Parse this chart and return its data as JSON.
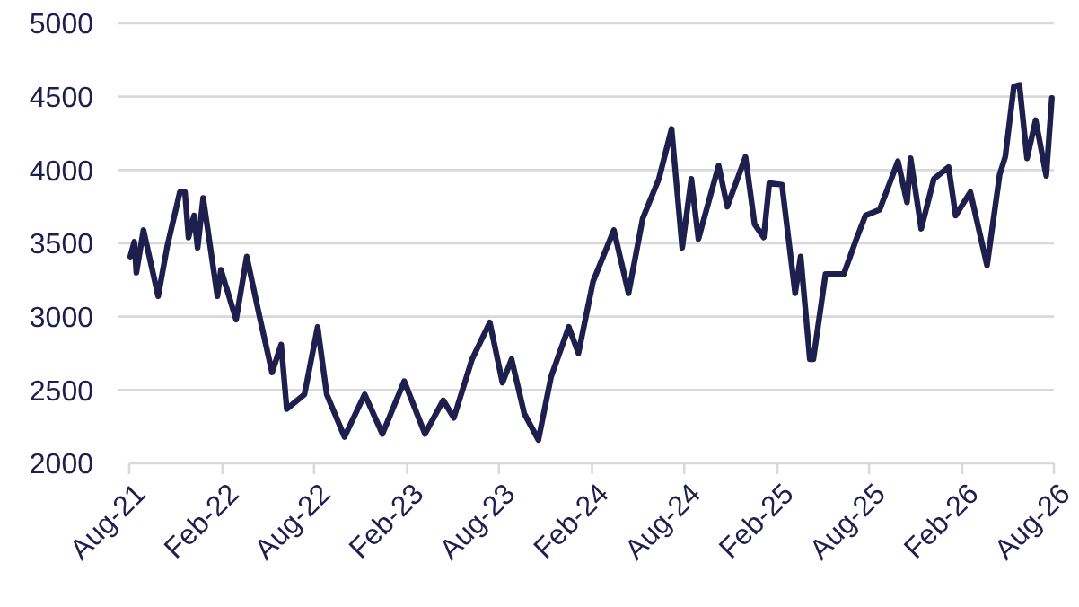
{
  "chart_data": {
    "type": "line",
    "grid": "y",
    "marker": "none",
    "line_style": "solid",
    "xlim": [
      "2021-08-01",
      "2026-08-01"
    ],
    "xticks": [
      {
        "value": "2021-08-01",
        "label": "Aug-21"
      },
      {
        "value": "2022-02-01",
        "label": "Feb-22"
      },
      {
        "value": "2022-08-01",
        "label": "Aug-22"
      },
      {
        "value": "2023-02-01",
        "label": "Feb-23"
      },
      {
        "value": "2023-08-01",
        "label": "Aug-23"
      },
      {
        "value": "2024-02-01",
        "label": "Feb-24"
      },
      {
        "value": "2024-08-01",
        "label": "Aug-24"
      },
      {
        "value": "2025-02-01",
        "label": "Feb-25"
      },
      {
        "value": "2025-08-01",
        "label": "Aug-25"
      },
      {
        "value": "2026-02-01",
        "label": "Feb-26"
      },
      {
        "value": "2026-08-01",
        "label": "Aug-26"
      }
    ],
    "ylim": [
      2000,
      5000
    ],
    "yticks": [
      2000,
      2500,
      3000,
      3500,
      4000,
      4500,
      5000
    ],
    "series": [
      {
        "color": "#1f1f4d",
        "x": [
          "2021-08-03",
          "2021-08-11",
          "2021-08-15",
          "2021-08-29",
          "2021-09-27",
          "2021-10-15",
          "2021-11-09",
          "2021-11-19",
          "2021-11-26",
          "2021-12-07",
          "2021-12-14",
          "2021-12-25",
          "2022-01-22",
          "2022-01-29",
          "2022-02-28",
          "2022-03-21",
          "2022-04-16",
          "2022-05-10",
          "2022-05-28",
          "2022-06-08",
          "2022-07-13",
          "2022-08-08",
          "2022-08-26",
          "2022-09-30",
          "2022-11-09",
          "2022-12-14",
          "2023-01-26",
          "2023-03-08",
          "2023-04-13",
          "2023-05-04",
          "2023-06-09",
          "2023-07-14",
          "2023-08-08",
          "2023-08-26",
          "2023-09-20",
          "2023-10-18",
          "2023-11-12",
          "2023-12-17",
          "2024-01-05",
          "2024-02-03",
          "2024-03-15",
          "2024-04-13",
          "2024-05-11",
          "2024-06-12",
          "2024-07-07",
          "2024-07-28",
          "2024-08-15",
          "2024-08-29",
          "2024-10-08",
          "2024-10-25",
          "2024-11-30",
          "2024-12-18",
          "2025-01-05",
          "2025-01-16",
          "2025-02-10",
          "2025-03-08",
          "2025-03-19",
          "2025-04-06",
          "2025-04-13",
          "2025-05-07",
          "2025-06-12",
          "2025-07-07",
          "2025-07-25",
          "2025-08-22",
          "2025-09-27",
          "2025-10-15",
          "2025-10-22",
          "2025-11-12",
          "2025-12-07",
          "2026-01-05",
          "2026-01-19",
          "2026-02-17",
          "2026-03-22",
          "2026-04-16",
          "2026-04-27",
          "2026-05-14",
          "2026-05-25",
          "2026-06-09",
          "2026-06-26",
          "2026-07-17",
          "2026-07-28"
        ],
        "values": [
          3410,
          3510,
          3300,
          3590,
          3140,
          3480,
          3850,
          3850,
          3540,
          3690,
          3470,
          3810,
          3140,
          3320,
          2980,
          3410,
          2990,
          2620,
          2810,
          2370,
          2470,
          2930,
          2470,
          2180,
          2470,
          2200,
          2560,
          2200,
          2430,
          2310,
          2710,
          2960,
          2550,
          2710,
          2340,
          2160,
          2590,
          2930,
          2750,
          3240,
          3590,
          3160,
          3670,
          3940,
          4280,
          3470,
          3940,
          3530,
          4030,
          3750,
          4090,
          3630,
          3540,
          3910,
          3900,
          3160,
          3410,
          2710,
          2710,
          3290,
          3290,
          3530,
          3690,
          3730,
          4060,
          3780,
          4080,
          3600,
          3940,
          4020,
          3690,
          3850,
          3350,
          3970,
          4090,
          4570,
          4580,
          4080,
          4340,
          3960,
          4490
        ]
      }
    ]
  }
}
